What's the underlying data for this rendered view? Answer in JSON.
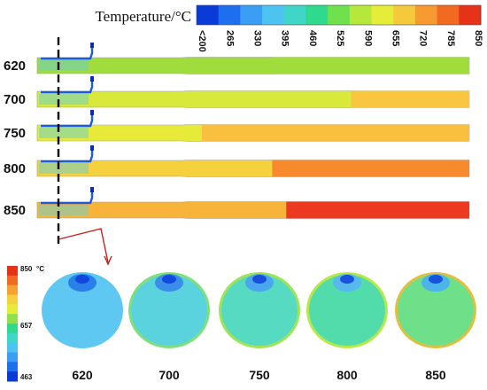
{
  "figure": {
    "title": "Temperature/°C",
    "top_scale": {
      "ticks": [
        "<200",
        "265",
        "330",
        "395",
        "460",
        "525",
        "590",
        "655",
        "720",
        "785",
        "850"
      ],
      "colors": [
        "#0a3ad8",
        "#1e6ef0",
        "#3b9ef5",
        "#4dc3f2",
        "#3fd6c8",
        "#2fd98e",
        "#6fe04e",
        "#b6e83c",
        "#e4ee38",
        "#f6c83c",
        "#f79a32",
        "#f26a22",
        "#e63219"
      ]
    },
    "rows": [
      {
        "label": "620",
        "front_color": "#9fdc3c",
        "back_color": "#9fdc3c",
        "split": 0.3
      },
      {
        "label": "700",
        "front_color": "#d9e93b",
        "back_color": "#f9c63f",
        "split": 0.58
      },
      {
        "label": "750",
        "front_color": "#e7ea39",
        "back_color": "#f9c040",
        "split": 0.05
      },
      {
        "label": "800",
        "front_color": "#f6d13e",
        "back_color": "#f88a2e",
        "split": 0.3
      },
      {
        "label": "850",
        "front_color": "#f8b43a",
        "back_color": "#eb3a1f",
        "split": 0.35
      }
    ],
    "side_scale": {
      "labels": {
        "top": "850",
        "unit": "°C",
        "mid": "657",
        "bottom": "463"
      },
      "colors": [
        "#e63219",
        "#f26a22",
        "#f7a034",
        "#f6d13e",
        "#e4ee38",
        "#8fe04a",
        "#2fd98e",
        "#3fd6c8",
        "#4dc3f2",
        "#3b9ef5",
        "#1e6ef0",
        "#0a3ad8"
      ]
    },
    "cross_sections": [
      {
        "label": "620",
        "body": "#5ec8f2",
        "ring": "#5ec8f2",
        "top": "#2a7fe8"
      },
      {
        "label": "700",
        "body": "#5ad3df",
        "ring": "#7ee07a",
        "top": "#3a8eea"
      },
      {
        "label": "750",
        "body": "#56dac2",
        "ring": "#9ee456",
        "top": "#4aa6ee"
      },
      {
        "label": "800",
        "body": "#52dcac",
        "ring": "#b8e848",
        "top": "#56b8ec"
      },
      {
        "label": "850",
        "body": "#6fe08a",
        "ring": "#e0c040",
        "top": "#4cb4ea"
      }
    ]
  }
}
